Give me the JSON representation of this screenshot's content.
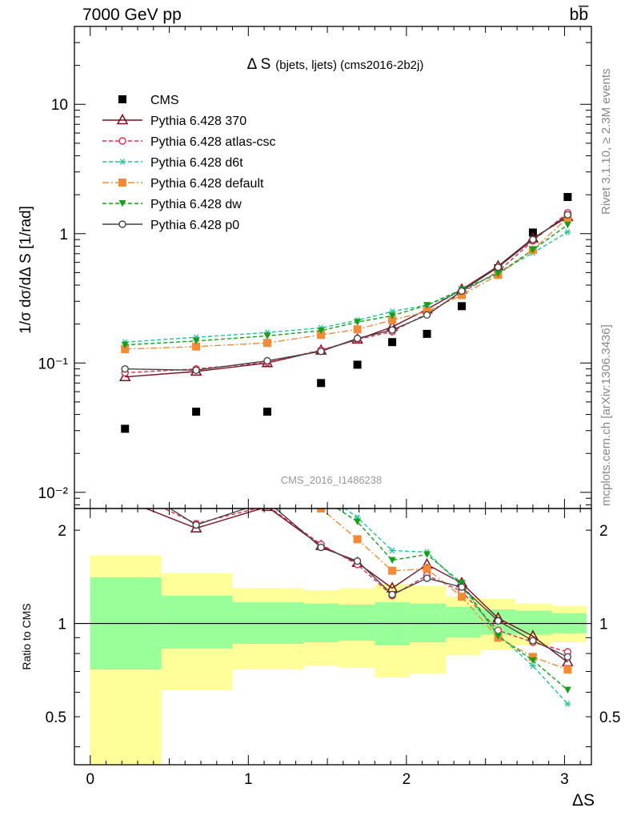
{
  "header": {
    "left": "7000 GeV pp",
    "right": "bb̅"
  },
  "side": {
    "rivet": "Rivet 3.1.10, ≥ 2.3M events",
    "mcplots": "mcplots.cern.ch [arXiv:1306.3436]"
  },
  "chart_data": {
    "type": "scatter",
    "title_main": "Δ S",
    "title_sub": "(bjets, ljets) (cms2016-2b2j)",
    "watermark": "CMS_2016_I1486238",
    "xlabel": "ΔS",
    "ylabel": "1/σ dσ/dΔ S [1/rad]",
    "ratio_ylabel": "Ratio to CMS",
    "xlim": [
      -0.1,
      3.17
    ],
    "ylim": [
      0.0075,
      40
    ],
    "yscale": "log",
    "ratio_ylim": [
      0.35,
      2.35
    ],
    "ratio_yscale": "log",
    "xticks": [
      0,
      1,
      2,
      3
    ],
    "yticks_labels": [
      {
        "v": 10,
        "label": "10"
      },
      {
        "v": 1,
        "label": "1"
      },
      {
        "v": 0.1,
        "label": "10⁻¹"
      },
      {
        "v": 0.01,
        "label": "10⁻²"
      }
    ],
    "ratio_yticks": [
      {
        "v": 0.5,
        "label": "0.5"
      },
      {
        "v": 1,
        "label": "1"
      },
      {
        "v": 2,
        "label": "2"
      }
    ],
    "legend_position": "top-left",
    "x": [
      0.22,
      0.67,
      1.12,
      1.46,
      1.69,
      1.91,
      2.13,
      2.35,
      2.58,
      2.8,
      3.02
    ],
    "bin_edges": [
      0.0,
      0.45,
      0.9,
      1.35,
      1.57,
      1.8,
      2.02,
      2.25,
      2.47,
      2.69,
      2.92,
      3.14
    ],
    "ratio_bands": {
      "inner_color": "#99ff99",
      "outer_color": "#ffff99",
      "inner": [
        [
          0.71,
          1.41
        ],
        [
          0.83,
          1.23
        ],
        [
          0.86,
          1.17
        ],
        [
          0.87,
          1.16
        ],
        [
          0.88,
          1.15
        ],
        [
          0.85,
          1.17
        ],
        [
          0.87,
          1.16
        ],
        [
          0.9,
          1.13
        ],
        [
          0.92,
          1.11
        ],
        [
          0.92,
          1.1
        ],
        [
          0.93,
          1.08
        ]
      ],
      "outer": [
        [
          0.35,
          1.66
        ],
        [
          0.61,
          1.45
        ],
        [
          0.71,
          1.3
        ],
        [
          0.73,
          1.28
        ],
        [
          0.72,
          1.3
        ],
        [
          0.67,
          1.34
        ],
        [
          0.69,
          1.32
        ],
        [
          0.79,
          1.22
        ],
        [
          0.82,
          1.2
        ],
        [
          0.85,
          1.16
        ],
        [
          0.87,
          1.14
        ]
      ]
    },
    "series": [
      {
        "name": "CMS",
        "style": "data",
        "color": "#000000",
        "marker": "square",
        "values": [
          0.031,
          0.042,
          0.042,
          0.07,
          0.097,
          0.145,
          0.168,
          0.275,
          0.54,
          1.02,
          1.92
        ]
      },
      {
        "name": "Pythia 6.428 370",
        "style": "solid",
        "color": "#7a0f1f",
        "marker": "triangle-open",
        "values": [
          0.078,
          0.086,
          0.1,
          0.125,
          0.152,
          0.19,
          0.26,
          0.37,
          0.56,
          0.92,
          1.35
        ],
        "ratio": [
          2.5,
          2.03,
          2.38,
          1.78,
          1.57,
          1.3,
          1.55,
          1.35,
          1.04,
          0.91,
          0.75
        ]
      },
      {
        "name": "Pythia 6.428 atlas-csc",
        "style": "dashed",
        "color": "#e8294f",
        "marker": "circle-open",
        "values": [
          0.084,
          0.09,
          0.101,
          0.126,
          0.152,
          0.175,
          0.24,
          0.35,
          0.51,
          0.88,
          1.45
        ],
        "ratio": [
          2.7,
          2.1,
          2.4,
          1.8,
          1.55,
          1.23,
          1.43,
          1.27,
          0.95,
          0.87,
          0.81
        ]
      },
      {
        "name": "Pythia 6.428 d6t",
        "style": "dashed",
        "color": "#1fc69a",
        "marker": "asterisk",
        "values": [
          0.145,
          0.158,
          0.172,
          0.187,
          0.214,
          0.25,
          0.28,
          0.36,
          0.5,
          0.71,
          1.03
        ],
        "ratio": [
          4.7,
          3.8,
          4.1,
          2.67,
          2.2,
          1.72,
          1.7,
          1.32,
          0.92,
          0.73,
          0.55
        ]
      },
      {
        "name": "Pythia 6.428 default",
        "style": "dashdot",
        "color": "#f58a36",
        "marker": "square",
        "values": [
          0.128,
          0.134,
          0.143,
          0.165,
          0.182,
          0.215,
          0.25,
          0.335,
          0.48,
          0.75,
          1.33
        ],
        "ratio": [
          4.1,
          3.2,
          3.4,
          2.35,
          1.87,
          1.48,
          1.5,
          1.22,
          0.9,
          0.78,
          0.71
        ]
      },
      {
        "name": "Pythia 6.428 dw",
        "style": "dashed",
        "color": "#16a019",
        "marker": "triangle-down",
        "values": [
          0.138,
          0.148,
          0.162,
          0.178,
          0.207,
          0.232,
          0.28,
          0.37,
          0.49,
          0.75,
          1.17
        ],
        "ratio": [
          4.5,
          3.5,
          3.9,
          2.55,
          2.13,
          1.6,
          1.67,
          1.35,
          0.91,
          0.76,
          0.61
        ]
      },
      {
        "name": "Pythia 6.428 p0",
        "style": "solid",
        "color": "#444444",
        "marker": "circle-open",
        "values": [
          0.09,
          0.088,
          0.104,
          0.123,
          0.155,
          0.18,
          0.235,
          0.36,
          0.55,
          0.9,
          1.4
        ],
        "ratio": [
          2.9,
          2.08,
          2.48,
          1.76,
          1.59,
          1.24,
          1.4,
          1.31,
          1.02,
          0.88,
          0.78
        ]
      }
    ]
  }
}
